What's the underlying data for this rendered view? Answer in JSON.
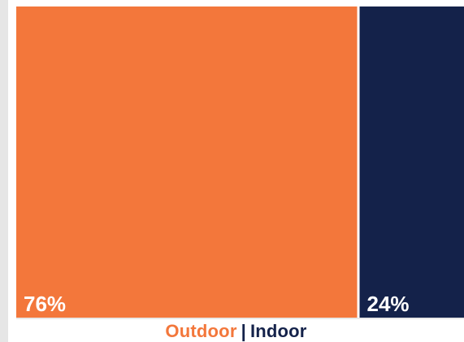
{
  "colors": {
    "outdoor": "#f3773b",
    "indoor": "#14224a",
    "border": "#e8e8e8"
  },
  "chart_data": {
    "type": "bar",
    "stacked_100": true,
    "orientation": "horizontal",
    "series": [
      {
        "name": "Outdoor",
        "value": 76,
        "label": "76%"
      },
      {
        "name": "Indoor",
        "value": 24,
        "label": "24%"
      }
    ],
    "legend": {
      "items": [
        "Outdoor",
        "Indoor"
      ],
      "separator": "|",
      "placement": "bottom-center"
    },
    "title": "",
    "xlabel": "",
    "ylabel": "",
    "grid": false
  }
}
